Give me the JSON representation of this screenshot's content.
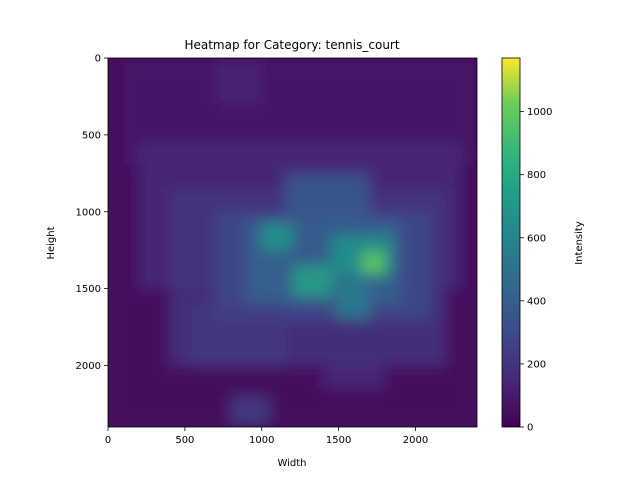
{
  "chart_data": {
    "type": "heatmap",
    "title": "Heatmap for Category: tennis_court",
    "xlabel": "Width",
    "ylabel": "Height",
    "colorbar_label": "Intensity",
    "colormap": "viridis",
    "xlim": [
      0,
      2400
    ],
    "ylim": [
      2400,
      0
    ],
    "color_range": [
      0,
      1170
    ],
    "x_ticks": [
      0,
      500,
      1000,
      1500,
      2000
    ],
    "y_ticks": [
      0,
      500,
      1000,
      1500,
      2000
    ],
    "colorbar_ticks": [
      0,
      200,
      400,
      600,
      800,
      1000
    ],
    "background_value": 30,
    "regions": [
      {
        "x": [
          0,
          2400
        ],
        "y": [
          0,
          2400
        ],
        "value": 40
      },
      {
        "x": [
          100,
          2400
        ],
        "y": [
          0,
          700
        ],
        "value": 90
      },
      {
        "x": [
          200,
          2300
        ],
        "y": [
          550,
          1500
        ],
        "value": 160
      },
      {
        "x": [
          400,
          2200
        ],
        "y": [
          850,
          2000
        ],
        "value": 210
      },
      {
        "x": [
          700,
          2100
        ],
        "y": [
          1000,
          1700
        ],
        "value": 300
      },
      {
        "x": [
          900,
          1900
        ],
        "y": [
          1050,
          1600
        ],
        "value": 420
      },
      {
        "x": [
          1150,
          1700
        ],
        "y": [
          750,
          1450
        ],
        "value": 380
      },
      {
        "x": [
          1000,
          1200
        ],
        "y": [
          1080,
          1250
        ],
        "value": 700
      },
      {
        "x": [
          1200,
          1450
        ],
        "y": [
          1350,
          1550
        ],
        "value": 760
      },
      {
        "x": [
          1450,
          1850
        ],
        "y": [
          1150,
          1420
        ],
        "value": 680
      },
      {
        "x": [
          1650,
          1800
        ],
        "y": [
          1260,
          1400
        ],
        "value": 1000
      },
      {
        "x": [
          1480,
          1700
        ],
        "y": [
          1450,
          1700
        ],
        "value": 560
      },
      {
        "x": [
          550,
          1150
        ],
        "y": [
          1600,
          2000
        ],
        "value": 230
      },
      {
        "x": [
          800,
          1050
        ],
        "y": [
          2200,
          2400
        ],
        "value": 250
      },
      {
        "x": [
          700,
          1000
        ],
        "y": [
          0,
          300
        ],
        "value": 130
      },
      {
        "x": [
          1400,
          1800
        ],
        "y": [
          1950,
          2150
        ],
        "value": 170
      }
    ]
  }
}
